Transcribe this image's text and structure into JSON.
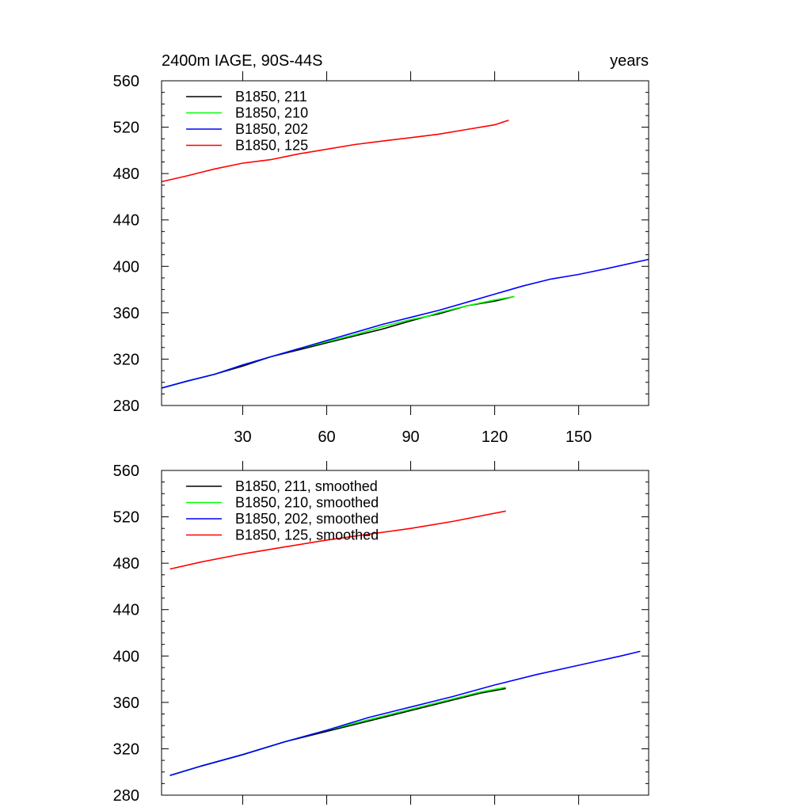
{
  "chart_data": [
    {
      "type": "line",
      "title": "2400m IAGE, 90S-44S",
      "title_right": "years",
      "xlim": [
        1,
        175
      ],
      "ylim": [
        280,
        560
      ],
      "yticks": [
        280,
        320,
        360,
        400,
        440,
        480,
        520,
        560
      ],
      "xticks": [
        30,
        60,
        90,
        120,
        150
      ],
      "xtick_labels_shown": true,
      "legend_position": "top-left",
      "series": [
        {
          "name": "B1850, 211",
          "color": "#000000",
          "x": [
            1,
            10,
            20,
            30,
            40,
            50,
            60,
            70,
            80,
            90,
            96,
            100,
            110,
            120,
            127
          ],
          "y": [
            295,
            301,
            307,
            314,
            322,
            328,
            334,
            340,
            346,
            353,
            357,
            359,
            366,
            370,
            374
          ]
        },
        {
          "name": "B1850, 210",
          "color": "#00ff00",
          "x": [
            1,
            10,
            20,
            30,
            40,
            50,
            60,
            70,
            80,
            90,
            96,
            100,
            110,
            120,
            127
          ],
          "y": [
            295,
            301,
            307,
            315,
            322,
            329,
            335,
            341,
            348,
            354,
            357,
            360,
            366,
            371,
            374
          ]
        },
        {
          "name": "B1850, 202",
          "color": "#0000ff",
          "x": [
            1,
            10,
            20,
            30,
            40,
            50,
            60,
            70,
            80,
            90,
            100,
            110,
            120,
            130,
            140,
            150,
            160,
            175
          ],
          "y": [
            295,
            301,
            307,
            315,
            322,
            329,
            336,
            343,
            350,
            356,
            362,
            369,
            376,
            383,
            389,
            393,
            398,
            406
          ]
        },
        {
          "name": "B1850, 125",
          "color": "#ff0000",
          "x": [
            1,
            10,
            20,
            30,
            40,
            50,
            60,
            70,
            80,
            90,
            100,
            110,
            120,
            125
          ],
          "y": [
            473,
            478,
            484,
            489,
            492,
            497,
            501,
            505,
            508,
            511,
            514,
            518,
            522,
            526
          ]
        }
      ]
    },
    {
      "type": "line",
      "title": "",
      "xlim": [
        1,
        175
      ],
      "ylim": [
        280,
        560
      ],
      "yticks": [
        280,
        320,
        360,
        400,
        440,
        480,
        520,
        560
      ],
      "xticks": [
        30,
        60,
        90,
        120,
        150
      ],
      "xtick_labels_shown": false,
      "legend_position": "top-left",
      "series": [
        {
          "name": "B1850, 211, smoothed",
          "color": "#000000",
          "x": [
            4,
            15,
            30,
            45,
            60,
            75,
            90,
            105,
            115,
            124
          ],
          "y": [
            297,
            305,
            315,
            326,
            335,
            344,
            353,
            362,
            368,
            372
          ]
        },
        {
          "name": "B1850, 210, smoothed",
          "color": "#00ff00",
          "x": [
            4,
            15,
            30,
            45,
            60,
            75,
            90,
            105,
            115,
            124
          ],
          "y": [
            297,
            305,
            315,
            326,
            336,
            345,
            354,
            363,
            369,
            373
          ]
        },
        {
          "name": "B1850, 202, smoothed",
          "color": "#0000ff",
          "x": [
            4,
            15,
            30,
            45,
            60,
            75,
            90,
            105,
            120,
            135,
            150,
            165,
            172
          ],
          "y": [
            297,
            305,
            315,
            326,
            336,
            347,
            356,
            365,
            375,
            384,
            392,
            400,
            404
          ]
        },
        {
          "name": "B1850, 125, smoothed",
          "color": "#ff0000",
          "x": [
            4,
            15,
            30,
            45,
            60,
            75,
            90,
            105,
            124
          ],
          "y": [
            475,
            481,
            488,
            494,
            500,
            505,
            510,
            516,
            525
          ]
        }
      ]
    }
  ]
}
